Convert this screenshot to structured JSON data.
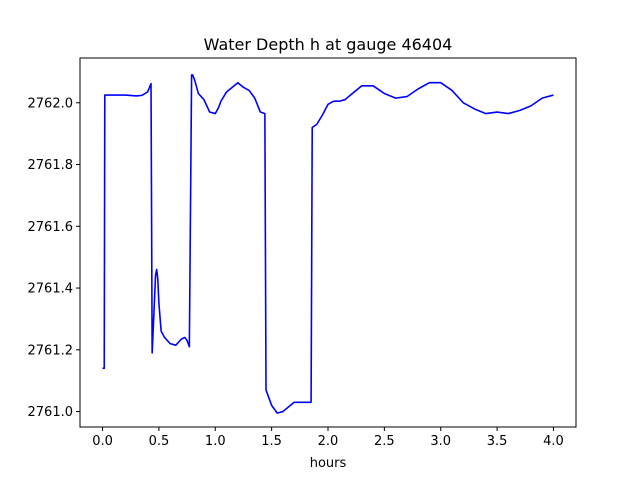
{
  "chart_data": {
    "type": "line",
    "title": "Water Depth h at gauge 46404",
    "xlabel": "hours",
    "ylabel": "",
    "xlim": [
      -0.2,
      4.2
    ],
    "ylim": [
      2760.95,
      2762.145
    ],
    "xticks": [
      0.0,
      0.5,
      1.0,
      1.5,
      2.0,
      2.5,
      3.0,
      3.5,
      4.0
    ],
    "xtick_labels": [
      "0.0",
      "0.5",
      "1.0",
      "1.5",
      "2.0",
      "2.5",
      "3.0",
      "3.5",
      "4.0"
    ],
    "yticks": [
      2761.0,
      2761.2,
      2761.4,
      2761.6,
      2761.8,
      2762.0
    ],
    "ytick_labels": [
      "2761.0",
      "2761.2",
      "2761.4",
      "2761.6",
      "2761.8",
      "2762.0"
    ],
    "grid": false,
    "series": [
      {
        "color": "#0000ff",
        "x": [
          0.0,
          0.015,
          0.02,
          0.1,
          0.2,
          0.3,
          0.35,
          0.4,
          0.43,
          0.44,
          0.45,
          0.47,
          0.48,
          0.49,
          0.5,
          0.52,
          0.55,
          0.6,
          0.65,
          0.7,
          0.73,
          0.75,
          0.77,
          0.79,
          0.8,
          0.82,
          0.85,
          0.9,
          0.95,
          1.0,
          1.03,
          1.05,
          1.1,
          1.15,
          1.2,
          1.25,
          1.3,
          1.35,
          1.4,
          1.44,
          1.45,
          1.5,
          1.55,
          1.6,
          1.65,
          1.7,
          1.75,
          1.8,
          1.85,
          1.86,
          1.9,
          1.95,
          2.0,
          2.05,
          2.1,
          2.15,
          2.2,
          2.3,
          2.4,
          2.5,
          2.6,
          2.7,
          2.8,
          2.9,
          3.0,
          3.1,
          3.2,
          3.3,
          3.4,
          3.5,
          3.6,
          3.7,
          3.8,
          3.9,
          4.0
        ],
        "y": [
          2761.14,
          2761.14,
          2762.025,
          2762.025,
          2762.025,
          2762.022,
          2762.024,
          2762.035,
          2762.062,
          2761.19,
          2761.27,
          2761.44,
          2761.46,
          2761.43,
          2761.35,
          2761.26,
          2761.24,
          2761.22,
          2761.215,
          2761.235,
          2761.24,
          2761.23,
          2761.21,
          2762.09,
          2762.09,
          2762.07,
          2762.03,
          2762.01,
          2761.97,
          2761.965,
          2761.985,
          2762.005,
          2762.035,
          2762.05,
          2762.065,
          2762.05,
          2762.04,
          2762.015,
          2761.97,
          2761.965,
          2761.07,
          2761.02,
          2760.995,
          2761.0,
          2761.015,
          2761.03,
          2761.03,
          2761.03,
          2761.03,
          2761.92,
          2761.93,
          2761.96,
          2761.995,
          2762.005,
          2762.005,
          2762.01,
          2762.025,
          2762.055,
          2762.055,
          2762.03,
          2762.015,
          2762.02,
          2762.045,
          2762.065,
          2762.065,
          2762.04,
          2762.0,
          2761.98,
          2761.965,
          2761.97,
          2761.965,
          2761.975,
          2761.99,
          2762.015,
          2762.025
        ]
      }
    ]
  }
}
